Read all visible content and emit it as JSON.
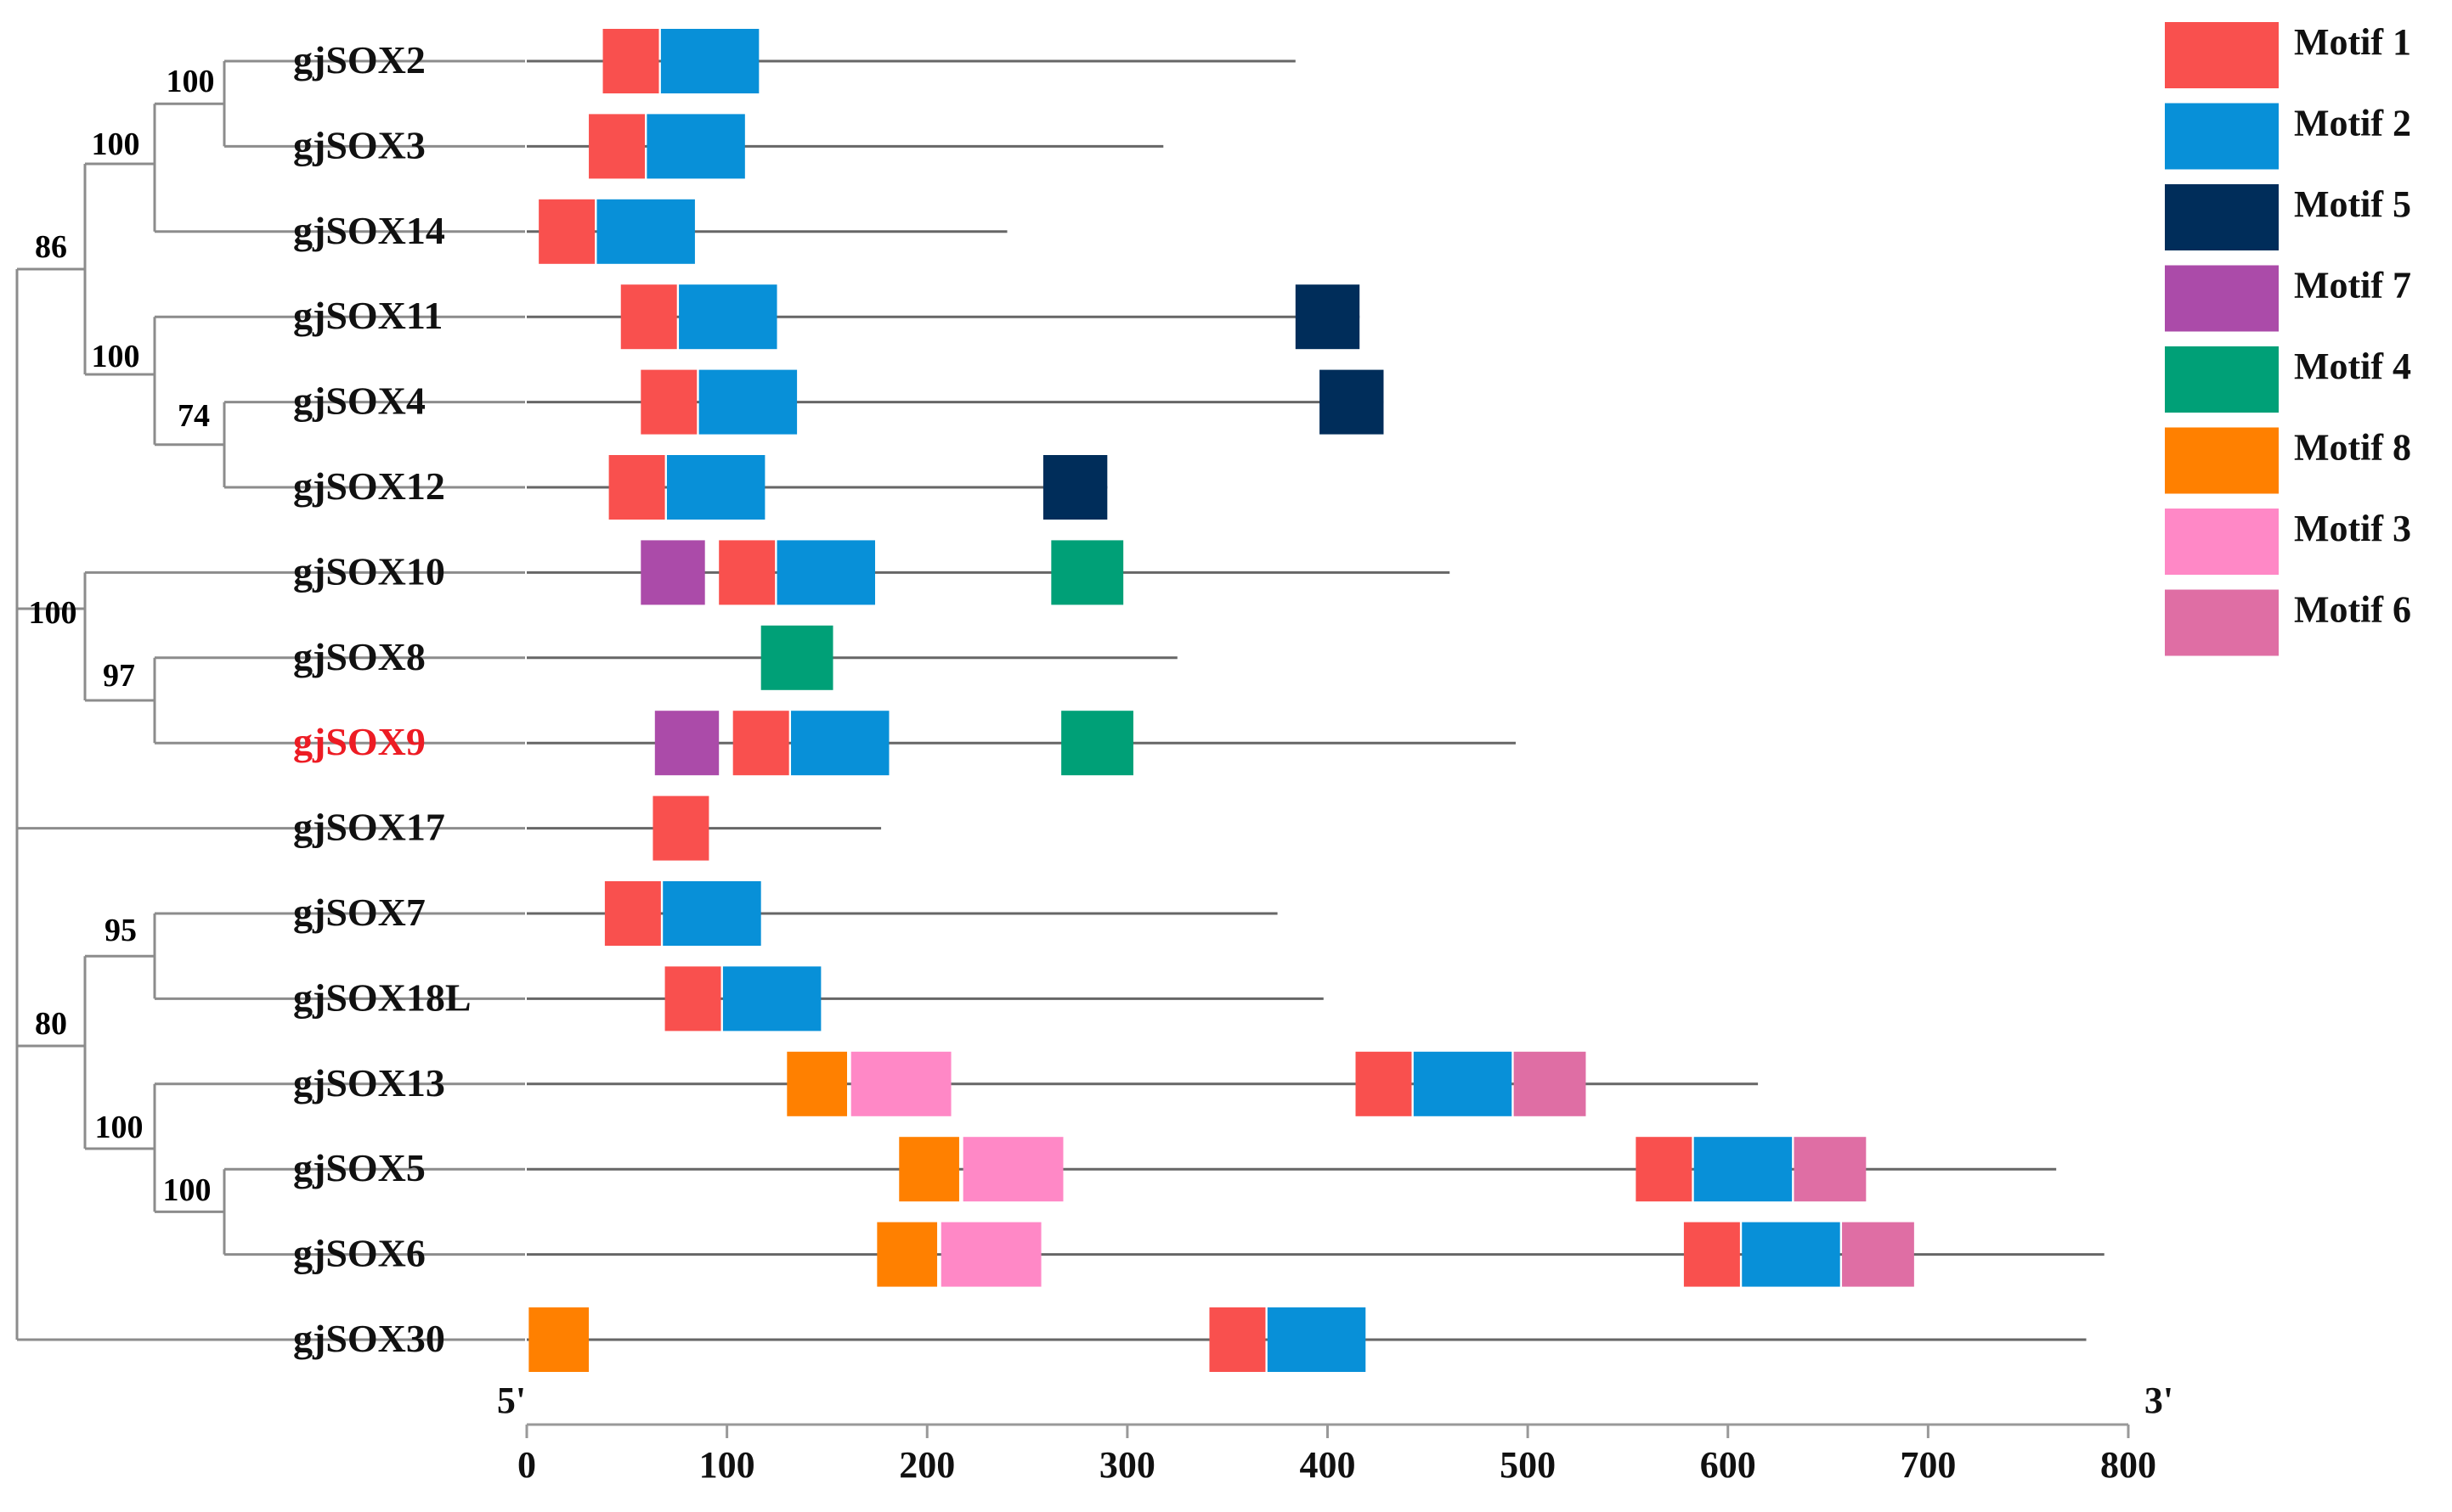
{
  "chart_data": {
    "type": "gene-structure-motif-diagram",
    "axis": {
      "min": 0,
      "max": 800,
      "ticks": [
        0,
        100,
        200,
        300,
        400,
        500,
        600,
        700,
        800
      ],
      "label_5prime": "5'",
      "label_3prime": "3'"
    },
    "highlight_color": "#ED1C24",
    "tree_line_color": "#8C8C8C",
    "protein_line_color": "#666666",
    "motifs": [
      {
        "id": "m1",
        "label": "Motif 1",
        "color": "#F9504E"
      },
      {
        "id": "m2",
        "label": "Motif 2",
        "color": "#0890D8"
      },
      {
        "id": "m5",
        "label": "Motif 5",
        "color": "#002D5A"
      },
      {
        "id": "m7",
        "label": "Motif 7",
        "color": "#AB4BA9"
      },
      {
        "id": "m4",
        "label": "Motif 4",
        "color": "#00A077"
      },
      {
        "id": "m8",
        "label": "Motif 8",
        "color": "#FF8000"
      },
      {
        "id": "m3",
        "label": "Motif 3",
        "color": "#FF88C6"
      },
      {
        "id": "m6",
        "label": "Motif 6",
        "color": "#DF6EA4"
      }
    ],
    "genes": [
      {
        "name": "gjSOX2",
        "length": 384,
        "highlight": false,
        "motifs": [
          {
            "m": "m1",
            "start": 38,
            "end": 66
          },
          {
            "m": "m2",
            "start": 67,
            "end": 116
          }
        ]
      },
      {
        "name": "gjSOX3",
        "length": 318,
        "highlight": false,
        "motifs": [
          {
            "m": "m1",
            "start": 31,
            "end": 59
          },
          {
            "m": "m2",
            "start": 60,
            "end": 109
          }
        ]
      },
      {
        "name": "gjSOX14",
        "length": 240,
        "highlight": false,
        "motifs": [
          {
            "m": "m1",
            "start": 6,
            "end": 34
          },
          {
            "m": "m2",
            "start": 35,
            "end": 84
          }
        ]
      },
      {
        "name": "gjSOX11",
        "length": 416,
        "highlight": false,
        "motifs": [
          {
            "m": "m1",
            "start": 47,
            "end": 75
          },
          {
            "m": "m2",
            "start": 76,
            "end": 125
          },
          {
            "m": "m5",
            "start": 384,
            "end": 416
          }
        ]
      },
      {
        "name": "gjSOX4",
        "length": 428,
        "highlight": false,
        "motifs": [
          {
            "m": "m1",
            "start": 57,
            "end": 85
          },
          {
            "m": "m2",
            "start": 86,
            "end": 135
          },
          {
            "m": "m5",
            "start": 396,
            "end": 428
          }
        ]
      },
      {
        "name": "gjSOX12",
        "length": 290,
        "highlight": false,
        "motifs": [
          {
            "m": "m1",
            "start": 41,
            "end": 69
          },
          {
            "m": "m2",
            "start": 70,
            "end": 119
          },
          {
            "m": "m5",
            "start": 258,
            "end": 290
          }
        ]
      },
      {
        "name": "gjSOX10",
        "length": 461,
        "highlight": false,
        "motifs": [
          {
            "m": "m7",
            "start": 57,
            "end": 89
          },
          {
            "m": "m1",
            "start": 96,
            "end": 124
          },
          {
            "m": "m2",
            "start": 125,
            "end": 174
          },
          {
            "m": "m4",
            "start": 262,
            "end": 298
          }
        ]
      },
      {
        "name": "gjSOX8",
        "length": 325,
        "highlight": false,
        "motifs": [
          {
            "m": "m4",
            "start": 117,
            "end": 153
          }
        ]
      },
      {
        "name": "gjSOX9",
        "length": 494,
        "highlight": true,
        "motifs": [
          {
            "m": "m7",
            "start": 64,
            "end": 96
          },
          {
            "m": "m1",
            "start": 103,
            "end": 131
          },
          {
            "m": "m2",
            "start": 132,
            "end": 181
          },
          {
            "m": "m4",
            "start": 267,
            "end": 303
          }
        ]
      },
      {
        "name": "gjSOX17",
        "length": 177,
        "highlight": false,
        "motifs": [
          {
            "m": "m1",
            "start": 63,
            "end": 91
          }
        ]
      },
      {
        "name": "gjSOX7",
        "length": 375,
        "highlight": false,
        "motifs": [
          {
            "m": "m1",
            "start": 39,
            "end": 67
          },
          {
            "m": "m2",
            "start": 68,
            "end": 117
          }
        ]
      },
      {
        "name": "gjSOX18L",
        "length": 398,
        "highlight": false,
        "motifs": [
          {
            "m": "m1",
            "start": 69,
            "end": 97
          },
          {
            "m": "m2",
            "start": 98,
            "end": 147
          }
        ]
      },
      {
        "name": "gjSOX13",
        "length": 615,
        "highlight": false,
        "motifs": [
          {
            "m": "m8",
            "start": 130,
            "end": 160
          },
          {
            "m": "m3",
            "start": 162,
            "end": 212
          },
          {
            "m": "m1",
            "start": 414,
            "end": 442
          },
          {
            "m": "m2",
            "start": 443,
            "end": 492
          },
          {
            "m": "m6",
            "start": 493,
            "end": 529
          }
        ]
      },
      {
        "name": "gjSOX5",
        "length": 764,
        "highlight": false,
        "motifs": [
          {
            "m": "m8",
            "start": 186,
            "end": 216
          },
          {
            "m": "m3",
            "start": 218,
            "end": 268
          },
          {
            "m": "m1",
            "start": 554,
            "end": 582
          },
          {
            "m": "m2",
            "start": 583,
            "end": 632
          },
          {
            "m": "m6",
            "start": 633,
            "end": 669
          }
        ]
      },
      {
        "name": "gjSOX6",
        "length": 788,
        "highlight": false,
        "motifs": [
          {
            "m": "m8",
            "start": 175,
            "end": 205
          },
          {
            "m": "m3",
            "start": 207,
            "end": 257
          },
          {
            "m": "m1",
            "start": 578,
            "end": 606
          },
          {
            "m": "m2",
            "start": 607,
            "end": 656
          },
          {
            "m": "m6",
            "start": 657,
            "end": 693
          }
        ]
      },
      {
        "name": "gjSOX30",
        "length": 779,
        "highlight": false,
        "motifs": [
          {
            "m": "m8",
            "start": 1,
            "end": 31
          },
          {
            "m": "m1",
            "start": 341,
            "end": 369
          },
          {
            "m": "m2",
            "start": 370,
            "end": 419
          }
        ]
      }
    ],
    "bootstrap_values": [
      "100",
      "100",
      "86",
      "100",
      "74",
      "100",
      "97",
      "95",
      "80",
      "100",
      "100"
    ]
  }
}
